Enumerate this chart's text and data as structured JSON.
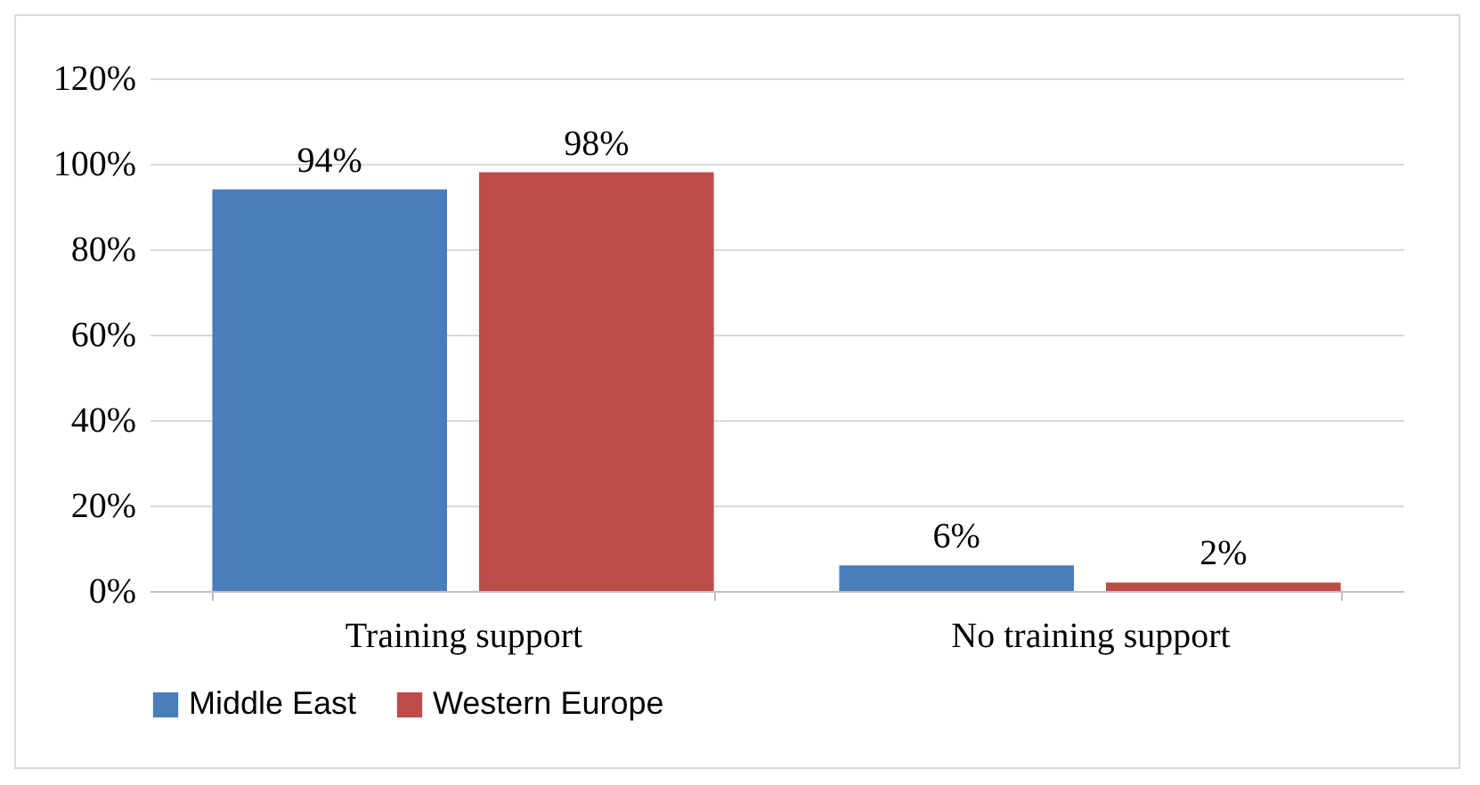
{
  "chart_data": {
    "type": "bar",
    "categories": [
      "Training support",
      "No training support"
    ],
    "series": [
      {
        "name": "Middle East",
        "color": "#4a7ebb",
        "values": [
          94,
          6
        ],
        "value_labels": [
          "94%",
          "6%"
        ]
      },
      {
        "name": "Western Europe",
        "color": "#be4b48",
        "values": [
          98,
          2
        ],
        "value_labels": [
          "98%",
          "2%"
        ]
      }
    ],
    "ylim": [
      0,
      120
    ],
    "yticks": [
      {
        "value": 0,
        "label": "0%"
      },
      {
        "value": 20,
        "label": "20%"
      },
      {
        "value": 40,
        "label": "40%"
      },
      {
        "value": 60,
        "label": "60%"
      },
      {
        "value": 80,
        "label": "80%"
      },
      {
        "value": 100,
        "label": "100%"
      },
      {
        "value": 120,
        "label": "120%"
      }
    ],
    "grid": "y",
    "legend": "bottom"
  }
}
